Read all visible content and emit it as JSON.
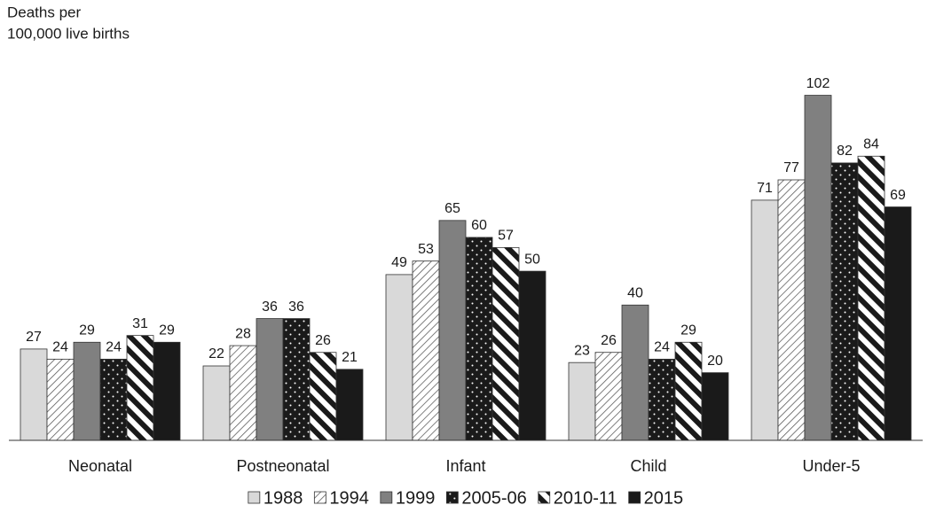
{
  "chart_data": {
    "type": "bar",
    "y_label": [
      "Deaths per",
      "100,000 live births"
    ],
    "categories": [
      "Neonatal",
      "Postneonatal",
      "Infant",
      "Child",
      "Under-5"
    ],
    "series": [
      {
        "name": "1988",
        "color": "#d9d9d9",
        "pattern": "solid",
        "values": [
          27,
          22,
          49,
          23,
          71
        ]
      },
      {
        "name": "1994",
        "color": "#555555",
        "pattern": "hatch",
        "values": [
          24,
          28,
          53,
          26,
          77
        ]
      },
      {
        "name": "1999",
        "color": "#808080",
        "pattern": "solid",
        "values": [
          29,
          36,
          65,
          40,
          102
        ]
      },
      {
        "name": "2005-06",
        "color": "#1a1a1a",
        "pattern": "dots",
        "values": [
          24,
          36,
          60,
          24,
          82
        ]
      },
      {
        "name": "2010-11",
        "color": "#1a1a1a",
        "pattern": "stripes",
        "values": [
          31,
          26,
          57,
          29,
          84
        ]
      },
      {
        "name": "2015",
        "color": "#1a1a1a",
        "pattern": "solid",
        "values": [
          29,
          21,
          50,
          20,
          69
        ]
      }
    ],
    "ylim": [
      0,
      110
    ],
    "grid": false,
    "legend": "bottom"
  }
}
